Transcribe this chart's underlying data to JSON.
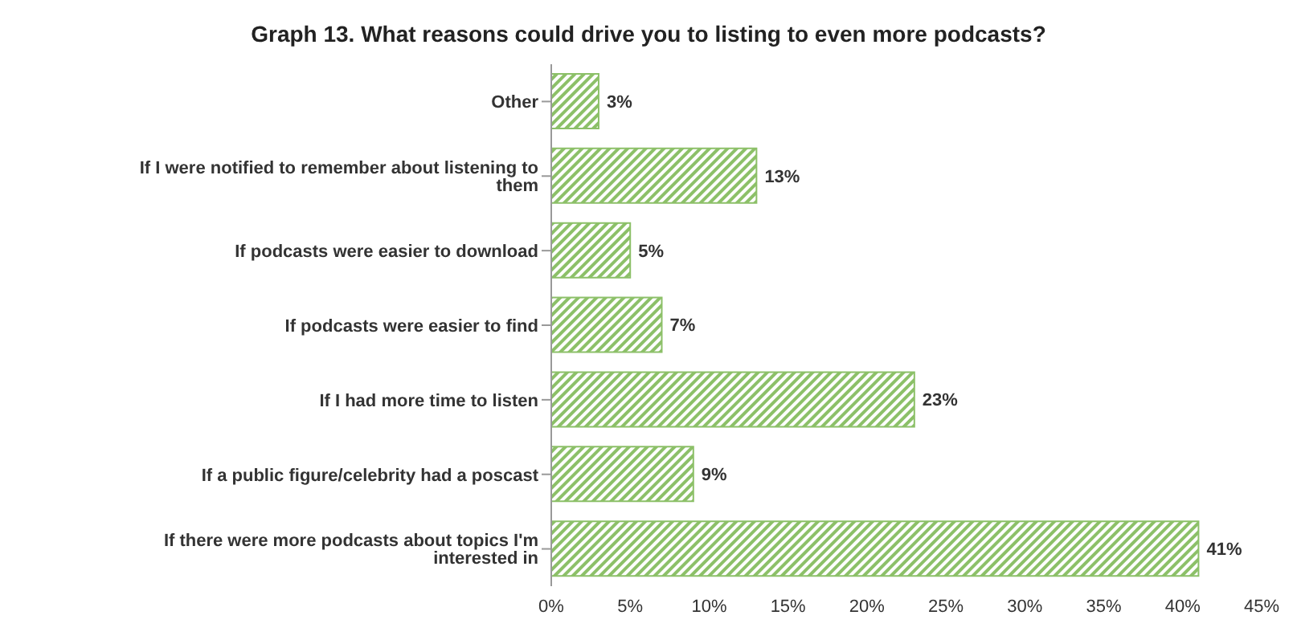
{
  "chart_data": {
    "type": "bar",
    "orientation": "horizontal",
    "title": "Graph 13. What reasons could drive you to listing to even more podcasts?",
    "categories": [
      "Other",
      "If I were notified to remember about listening to them",
      "If podcasts were easier to download",
      "If podcasts were easier to find",
      "If I had more time to listen",
      "If a public figure/celebrity had a poscast",
      "If there were more podcasts about topics I'm interested in"
    ],
    "values": [
      3,
      13,
      5,
      7,
      23,
      9,
      41
    ],
    "value_labels": [
      "3%",
      "13%",
      "5%",
      "7%",
      "23%",
      "9%",
      "41%"
    ],
    "color": "#8cc068",
    "xlim": [
      0,
      45
    ],
    "xticks": [
      {
        "value": 0,
        "label": "0%"
      },
      {
        "value": 5,
        "label": "5%"
      },
      {
        "value": 10,
        "label": "10%"
      },
      {
        "value": 15,
        "label": "15%"
      },
      {
        "value": 20,
        "label": "20%"
      },
      {
        "value": 25,
        "label": "25%"
      },
      {
        "value": 30,
        "label": "30%"
      },
      {
        "value": 35,
        "label": "35%"
      },
      {
        "value": 40,
        "label": "40%"
      },
      {
        "value": 45,
        "label": "45%"
      }
    ],
    "grid": false,
    "legend": false
  }
}
